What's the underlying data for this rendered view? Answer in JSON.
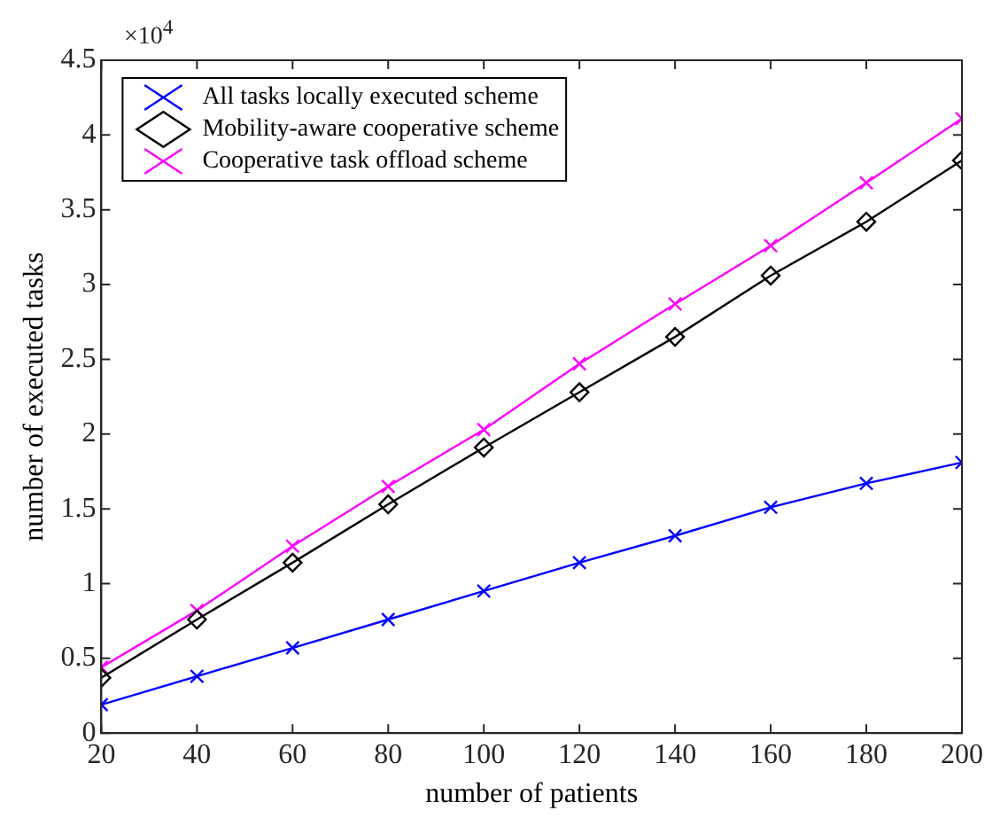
{
  "chart_data": {
    "type": "line",
    "xlabel": "number of patients",
    "ylabel": "number of executed tasks",
    "annotations": [
      "×10$^{4}$"
    ],
    "x": [
      20,
      40,
      60,
      80,
      100,
      120,
      140,
      160,
      180,
      200
    ],
    "series": [
      {
        "name": "All tasks locally executed scheme",
        "color": "#0000ff",
        "marker": "cross",
        "values": [
          0.19,
          0.38,
          0.57,
          0.76,
          0.95,
          1.14,
          1.32,
          1.51,
          1.67,
          1.81
        ]
      },
      {
        "name": "Mobility-aware cooperative scheme",
        "color": "#000000",
        "marker": "diamond",
        "values": [
          0.37,
          0.76,
          1.14,
          1.53,
          1.91,
          2.28,
          2.65,
          3.06,
          3.42,
          3.83
        ]
      },
      {
        "name": "Cooperative task offload scheme",
        "color": "#ff00ff",
        "marker": "cross",
        "values": [
          0.44,
          0.82,
          1.25,
          1.65,
          2.03,
          2.47,
          2.87,
          3.26,
          3.68,
          4.11
        ]
      }
    ],
    "xlim": [
      20,
      200
    ],
    "xticks": [
      20,
      40,
      60,
      80,
      100,
      120,
      140,
      160,
      180,
      200
    ],
    "ylim": [
      0,
      4.5
    ],
    "yticks": [
      0,
      0.5,
      1,
      1.5,
      2,
      2.5,
      3,
      3.5,
      4,
      4.5
    ],
    "grid": false,
    "legend": "top left",
    "line_style": "solid"
  }
}
